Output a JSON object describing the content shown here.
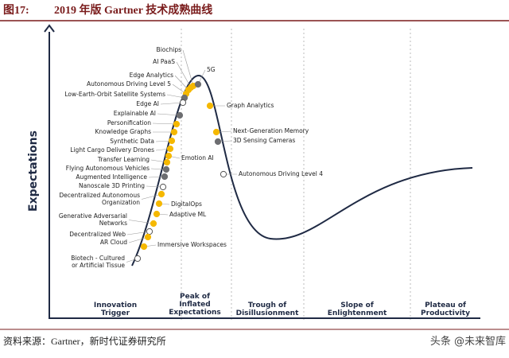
{
  "header": {
    "number": "图17:",
    "title": "2019 年版 Gartner 技术成熟曲线"
  },
  "y_axis_label": "Expectations",
  "phases": [
    {
      "lines": [
        "Innovation",
        "Trigger"
      ]
    },
    {
      "lines": [
        "Peak of",
        "Inflated",
        "Expectations"
      ]
    },
    {
      "lines": [
        "Trough of",
        "Disillusionment"
      ]
    },
    {
      "lines": [
        "Slope of",
        "Enlightenment"
      ]
    },
    {
      "lines": [
        "Plateau of",
        "Productivity"
      ]
    }
  ],
  "technologies": [
    {
      "lines": [
        "Biochips"
      ],
      "color": "#f5b800"
    },
    {
      "lines": [
        "AI PaaS"
      ],
      "color": "#f5b800"
    },
    {
      "lines": [
        "5G"
      ],
      "color": "#6d6e71"
    },
    {
      "lines": [
        "Edge Analytics"
      ],
      "color": "#f5b800"
    },
    {
      "lines": [
        "Autonomous Driving Level 5"
      ],
      "color": "#f5b800"
    },
    {
      "lines": [
        "Low-Earth-Orbit Satellite Systems"
      ],
      "color": "#6d6e71"
    },
    {
      "lines": [
        "Edge AI"
      ],
      "color": "#ffffff"
    },
    {
      "lines": [
        "Graph Analytics"
      ],
      "color": "#f5b800"
    },
    {
      "lines": [
        "Explainable AI"
      ],
      "color": "#6d6e71"
    },
    {
      "lines": [
        "Personification"
      ],
      "color": "#f5b800"
    },
    {
      "lines": [
        "Knowledge Graphs"
      ],
      "color": "#f5b800"
    },
    {
      "lines": [
        "Next-Generation Memory"
      ],
      "color": "#f5b800"
    },
    {
      "lines": [
        "3D Sensing Cameras"
      ],
      "color": "#6d6e71"
    },
    {
      "lines": [
        "Synthetic Data"
      ],
      "color": "#f5b800"
    },
    {
      "lines": [
        "Light Cargo Delivery Drones"
      ],
      "color": "#f5b800"
    },
    {
      "lines": [
        "Emotion AI"
      ],
      "color": "#f5b800"
    },
    {
      "lines": [
        "Transfer Learning"
      ],
      "color": "#f5b800"
    },
    {
      "lines": [
        "Flying Autonomous Vehicles"
      ],
      "color": "#6d6e71"
    },
    {
      "lines": [
        "Augmented Intelligence"
      ],
      "color": "#6d6e71"
    },
    {
      "lines": [
        "Autonomous Driving Level 4"
      ],
      "color": "#ffffff"
    },
    {
      "lines": [
        "Nanoscale 3D Printing"
      ],
      "color": "#ffffff"
    },
    {
      "lines": [
        "Decentralized Autonomous",
        "Organization"
      ],
      "color": "#f5b800"
    },
    {
      "lines": [
        "DigitalOps"
      ],
      "color": "#f5b800"
    },
    {
      "lines": [
        "Adaptive ML"
      ],
      "color": "#f5b800"
    },
    {
      "lines": [
        "Generative Adversarial",
        "Networks"
      ],
      "color": "#f5b800"
    },
    {
      "lines": [
        "Decentralized Web"
      ],
      "color": "#ffffff"
    },
    {
      "lines": [
        "AR Cloud"
      ],
      "color": "#f5b800"
    },
    {
      "lines": [
        "Immersive Workspaces"
      ],
      "color": "#f5b800"
    },
    {
      "lines": [
        "Biotech - Cultured",
        "or Artificial Tissue"
      ],
      "color": "#ffffff"
    }
  ],
  "footer": {
    "source": "资料来源：Gartner，新时代证券研究所",
    "watermark": "头条 @未来智库"
  }
}
